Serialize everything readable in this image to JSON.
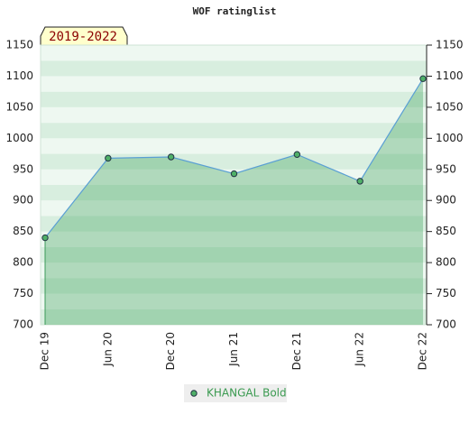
{
  "chart_data": {
    "type": "line",
    "title": "WOF ratinglist",
    "subtitle": "2019-2022",
    "categories": [
      "Dec 19",
      "Jun 20",
      "Dec 20",
      "Jun 21",
      "Dec 21",
      "Jun 22",
      "Dec 22"
    ],
    "series": [
      {
        "name": "KHANGAL Bold",
        "color": "#5a9fd4",
        "values": [
          840,
          968,
          970,
          943,
          974,
          931,
          1096
        ]
      }
    ],
    "ylim": [
      700,
      1150
    ],
    "yticks": [
      700,
      750,
      800,
      850,
      900,
      950,
      1000,
      1050,
      1100,
      1150
    ],
    "grid": true
  }
}
